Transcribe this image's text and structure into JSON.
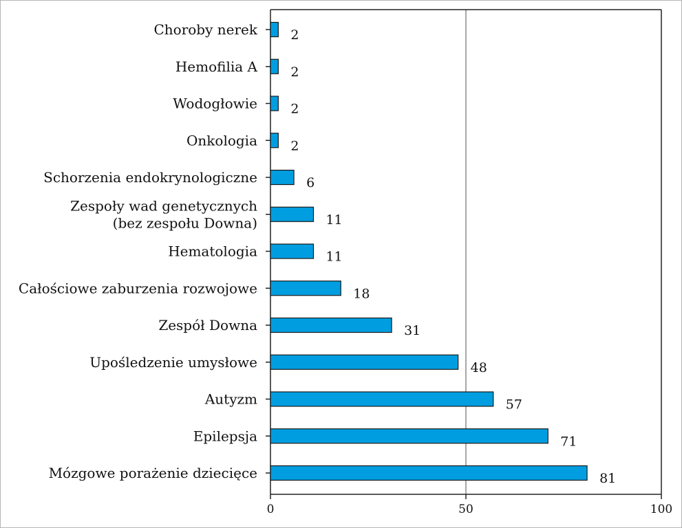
{
  "chart_data": {
    "type": "bar",
    "orientation": "horizontal",
    "categories": [
      "Choroby nerek",
      "Hemofilia A",
      "Wodogłowie",
      "Onkologia",
      "Schorzenia endokrynologiczne",
      "Zespoły wad genetycznych\n(bez zespołu Downa)",
      "Hematologia",
      "Całościowe zaburzenia rozwojowe",
      "Zespół Downa",
      "Upośledzenie umysłowe",
      "Autyzm",
      "Epilepsja",
      "Mózgowe porażenie dziecięce"
    ],
    "values": [
      2,
      2,
      2,
      2,
      6,
      11,
      11,
      18,
      31,
      48,
      57,
      71,
      81
    ],
    "xlim": [
      0,
      100
    ],
    "xticks": [
      0,
      50,
      100
    ],
    "gridlines_at": [
      50
    ],
    "bar_color": "#009ee0",
    "bar_edge_color": "#1a1a1a",
    "grid_color": "#8a8a8a",
    "title": "",
    "xlabel": "",
    "ylabel": ""
  }
}
